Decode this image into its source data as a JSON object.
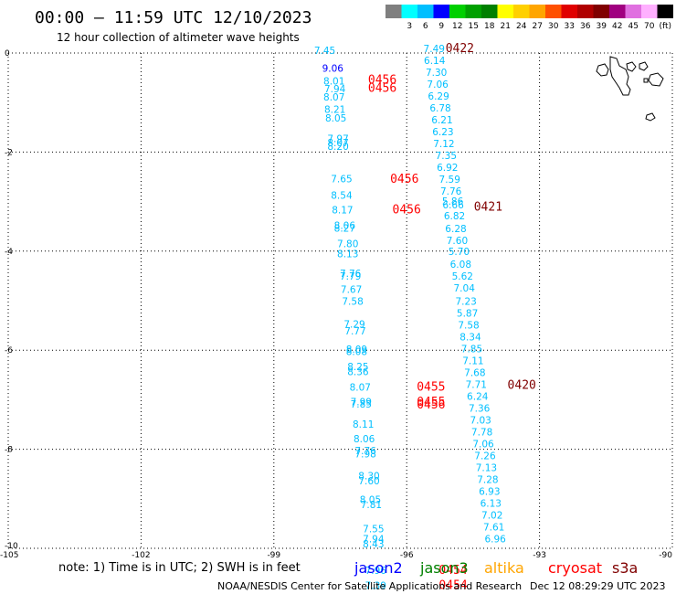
{
  "header": {
    "title": "00:00 — 11:59 UTC 12/10/2023",
    "subtitle": "12 hour collection of altimeter wave heights"
  },
  "colorbar": {
    "colors": [
      "#7f7f7f",
      "#00ffff",
      "#00bfff",
      "#0000ff",
      "#00d000",
      "#00a000",
      "#008000",
      "#ffff00",
      "#ffd000",
      "#ffa500",
      "#ff5000",
      "#e00000",
      "#b00000",
      "#800000",
      "#a00080",
      "#e070e0",
      "#ffb0ff",
      "#000000"
    ],
    "labels": [
      "3",
      "6",
      "9",
      "12",
      "15",
      "18",
      "21",
      "24",
      "27",
      "30",
      "33",
      "36",
      "39",
      "42",
      "45",
      "70"
    ],
    "unit": "(ft)"
  },
  "note": "note:  1) Time is in UTC; 2) SWH is in feet",
  "satellites": [
    {
      "name": "jason2",
      "color": "#0000ff"
    },
    {
      "name": "jason3",
      "color": "#008000"
    },
    {
      "name": "altika",
      "color": "#ffa500"
    },
    {
      "name": "cryosat",
      "color": "#ff0000"
    },
    {
      "name": "s3a",
      "color": "#800000"
    }
  ],
  "footer": {
    "left": "NOAA/NESDIS Center for Satellite Applications and Research",
    "right": "Dec 12 08:29:29 UTC 2023"
  },
  "chart_data": {
    "type": "scatter",
    "xlim": [
      -105,
      -90
    ],
    "ylim": [
      -10,
      0
    ],
    "xticks": [
      -105,
      -102,
      -99,
      -96,
      -93,
      -90
    ],
    "yticks": [
      0,
      -2,
      -4,
      -6,
      -8,
      -10
    ],
    "grid": true,
    "series": [
      {
        "name": "jason2",
        "color": "#0000ff",
        "points": [
          {
            "x": -97.67,
            "y": -0.38,
            "v": "9.06"
          }
        ]
      },
      {
        "name": "cyan",
        "color": "#00bfff",
        "points": [
          {
            "x": -97.85,
            "y": -0.02,
            "v": "7.45"
          },
          {
            "x": -97.64,
            "y": -0.64,
            "v": "8.01"
          },
          {
            "x": -97.62,
            "y": -0.79,
            "v": "7.94"
          },
          {
            "x": -97.64,
            "y": -0.96,
            "v": "8.07"
          },
          {
            "x": -97.62,
            "y": -1.21,
            "v": "8.21"
          },
          {
            "x": -97.6,
            "y": -1.38,
            "v": "8.05"
          },
          {
            "x": -97.55,
            "y": -1.8,
            "v": "7.97"
          },
          {
            "x": -97.55,
            "y": -1.88,
            "v": "8.07"
          },
          {
            "x": -97.55,
            "y": -1.96,
            "v": "8.20"
          },
          {
            "x": -97.47,
            "y": -2.61,
            "v": "7.65"
          },
          {
            "x": -97.47,
            "y": -2.94,
            "v": "8.54"
          },
          {
            "x": -97.45,
            "y": -3.24,
            "v": "8.17"
          },
          {
            "x": -97.4,
            "y": -3.55,
            "v": "8.06"
          },
          {
            "x": -97.4,
            "y": -3.61,
            "v": "8.27"
          },
          {
            "x": -97.33,
            "y": -3.92,
            "v": "7.80"
          },
          {
            "x": -97.33,
            "y": -4.12,
            "v": "8.13"
          },
          {
            "x": -97.27,
            "y": -4.52,
            "v": "7.76"
          },
          {
            "x": -97.27,
            "y": -4.58,
            "v": "7.79"
          },
          {
            "x": -97.25,
            "y": -4.84,
            "v": "7.67"
          },
          {
            "x": -97.22,
            "y": -5.08,
            "v": "7.58"
          },
          {
            "x": -97.18,
            "y": -5.54,
            "v": "7.29"
          },
          {
            "x": -97.16,
            "y": -5.68,
            "v": "7.77"
          },
          {
            "x": -97.13,
            "y": -6.05,
            "v": "8.09"
          },
          {
            "x": -97.13,
            "y": -6.1,
            "v": "8.08"
          },
          {
            "x": -97.1,
            "y": -6.4,
            "v": "8.25"
          },
          {
            "x": -97.1,
            "y": -6.5,
            "v": "8.36"
          },
          {
            "x": -97.05,
            "y": -6.82,
            "v": "8.07"
          },
          {
            "x": -97.03,
            "y": -7.11,
            "v": "7.99"
          },
          {
            "x": -97.03,
            "y": -7.16,
            "v": "7.85"
          },
          {
            "x": -96.98,
            "y": -7.56,
            "v": "8.11"
          },
          {
            "x": -96.96,
            "y": -7.86,
            "v": "8.06"
          },
          {
            "x": -96.93,
            "y": -8.1,
            "v": "7.76"
          },
          {
            "x": -96.93,
            "y": -8.16,
            "v": "7.98"
          },
          {
            "x": -96.85,
            "y": -8.61,
            "v": "8.30"
          },
          {
            "x": -96.85,
            "y": -8.71,
            "v": "7.60"
          },
          {
            "x": -96.82,
            "y": -9.09,
            "v": "8.05"
          },
          {
            "x": -96.8,
            "y": -9.19,
            "v": "7.81"
          },
          {
            "x": -96.75,
            "y": -9.68,
            "v": "7.55"
          },
          {
            "x": -96.75,
            "y": -9.88,
            "v": "7.94"
          },
          {
            "x": -96.75,
            "y": -9.98,
            "v": "8.43"
          },
          {
            "x": -96.7,
            "y": -10.52,
            "v": "7.96"
          },
          {
            "x": -96.7,
            "y": -10.82,
            "v": "7.39"
          },
          {
            "x": -95.38,
            "y": 0.02,
            "v": "7.49"
          },
          {
            "x": -95.37,
            "y": -0.22,
            "v": "6.14"
          },
          {
            "x": -95.33,
            "y": -0.46,
            "v": "7.30"
          },
          {
            "x": -95.3,
            "y": -0.7,
            "v": "7.06"
          },
          {
            "x": -95.28,
            "y": -0.94,
            "v": "6.29"
          },
          {
            "x": -95.24,
            "y": -1.18,
            "v": "6.78"
          },
          {
            "x": -95.2,
            "y": -1.42,
            "v": "6.21"
          },
          {
            "x": -95.18,
            "y": -1.66,
            "v": "6.23"
          },
          {
            "x": -95.16,
            "y": -1.9,
            "v": "7.12"
          },
          {
            "x": -95.11,
            "y": -2.14,
            "v": "7.35"
          },
          {
            "x": -95.08,
            "y": -2.38,
            "v": "6.92"
          },
          {
            "x": -95.03,
            "y": -2.62,
            "v": "7.59"
          },
          {
            "x": -95.0,
            "y": -2.86,
            "v": "7.76"
          },
          {
            "x": -94.96,
            "y": -3.06,
            "v": "5.86"
          },
          {
            "x": -94.95,
            "y": -3.14,
            "v": "6.66"
          },
          {
            "x": -94.92,
            "y": -3.36,
            "v": "6.82"
          },
          {
            "x": -94.89,
            "y": -3.62,
            "v": "6.28"
          },
          {
            "x": -94.86,
            "y": -3.86,
            "v": "7.60"
          },
          {
            "x": -94.82,
            "y": -4.08,
            "v": "5.70"
          },
          {
            "x": -94.78,
            "y": -4.34,
            "v": "6.08"
          },
          {
            "x": -94.74,
            "y": -4.58,
            "v": "5.62"
          },
          {
            "x": -94.7,
            "y": -4.82,
            "v": "7.04"
          },
          {
            "x": -94.66,
            "y": -5.08,
            "v": "7.23"
          },
          {
            "x": -94.63,
            "y": -5.32,
            "v": "5.87"
          },
          {
            "x": -94.6,
            "y": -5.56,
            "v": "7.58"
          },
          {
            "x": -94.56,
            "y": -5.8,
            "v": "8.34"
          },
          {
            "x": -94.53,
            "y": -6.04,
            "v": "7.85"
          },
          {
            "x": -94.5,
            "y": -6.28,
            "v": "7.11"
          },
          {
            "x": -94.46,
            "y": -6.52,
            "v": "7.68"
          },
          {
            "x": -94.43,
            "y": -6.76,
            "v": "7.71"
          },
          {
            "x": -94.4,
            "y": -7.0,
            "v": "6.24"
          },
          {
            "x": -94.36,
            "y": -7.24,
            "v": "7.36"
          },
          {
            "x": -94.33,
            "y": -7.48,
            "v": "7.03"
          },
          {
            "x": -94.3,
            "y": -7.72,
            "v": "7.78"
          },
          {
            "x": -94.27,
            "y": -7.96,
            "v": "7.06"
          },
          {
            "x": -94.23,
            "y": -8.2,
            "v": "7.26"
          },
          {
            "x": -94.2,
            "y": -8.44,
            "v": "7.13"
          },
          {
            "x": -94.17,
            "y": -8.68,
            "v": "7.28"
          },
          {
            "x": -94.13,
            "y": -8.92,
            "v": "6.93"
          },
          {
            "x": -94.1,
            "y": -9.16,
            "v": "6.13"
          },
          {
            "x": -94.07,
            "y": -9.4,
            "v": "7.02"
          },
          {
            "x": -94.03,
            "y": -9.64,
            "v": "7.61"
          },
          {
            "x": -94.0,
            "y": -9.88,
            "v": "6.96"
          }
        ]
      },
      {
        "name": "cryosat",
        "color": "#ff0000",
        "labels": [
          {
            "x": -96.55,
            "y": -0.62,
            "t": "0456"
          },
          {
            "x": -96.55,
            "y": -0.78,
            "t": "0456"
          },
          {
            "x": -96.05,
            "y": -2.62,
            "t": "0456"
          },
          {
            "x": -96.0,
            "y": -3.24,
            "t": "0456"
          },
          {
            "x": -95.45,
            "y": -6.82,
            "t": "0455"
          },
          {
            "x": -95.45,
            "y": -7.12,
            "t": "0455"
          },
          {
            "x": -95.45,
            "y": -7.18,
            "t": "0456"
          },
          {
            "x": -94.95,
            "y": -10.52,
            "t": "0454"
          },
          {
            "x": -94.95,
            "y": -10.82,
            "t": "0454"
          }
        ]
      },
      {
        "name": "s3a",
        "color": "#800000",
        "labels": [
          {
            "x": -94.8,
            "y": 0.02,
            "t": "0422"
          },
          {
            "x": -94.16,
            "y": -3.18,
            "t": "0421"
          },
          {
            "x": -93.4,
            "y": -6.78,
            "t": "0420"
          }
        ]
      }
    ]
  }
}
